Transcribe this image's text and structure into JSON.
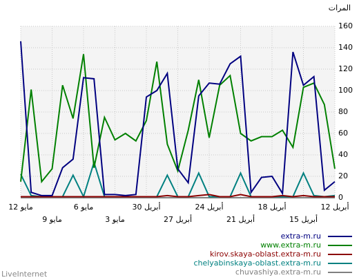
{
  "chart_data": {
    "type": "line",
    "y_label": "المرات",
    "categories": [
      "12 مايو",
      null,
      null,
      "9 مايو",
      null,
      null,
      "6 مايو",
      null,
      null,
      "3 مايو",
      null,
      null,
      "30 أبريل",
      null,
      null,
      "27 أبريل",
      null,
      null,
      "24 أبريل",
      null,
      null,
      "21 أبريل",
      null,
      null,
      "18 أبريل",
      null,
      null,
      "15 أبريل",
      null,
      null,
      "12 أبريل"
    ],
    "series": [
      {
        "name": "extra-m.ru",
        "color": "#000080",
        "values": [
          146,
          5,
          2,
          2,
          28,
          36,
          112,
          111,
          3,
          3,
          2,
          3,
          94,
          100,
          116,
          27,
          14,
          95,
          107,
          106,
          125,
          132,
          5,
          19,
          20,
          4,
          136,
          105,
          113,
          7,
          15
        ]
      },
      {
        "name": "www.extra-m.ru",
        "color": "#008000",
        "values": [
          15,
          101,
          15,
          27,
          105,
          74,
          134,
          28,
          75,
          54,
          60,
          53,
          72,
          127,
          50,
          25,
          63,
          110,
          56,
          105,
          114,
          60,
          53,
          57,
          57,
          63,
          47,
          103,
          107,
          87,
          27
        ]
      },
      {
        "name": "kirov.skaya-oblast.extra-m.ru",
        "color": "#8b0000",
        "values": [
          1,
          1,
          1,
          1,
          1,
          1,
          1,
          1,
          1,
          1,
          1,
          1,
          1,
          1,
          2,
          1,
          1,
          2,
          3,
          1,
          1,
          3,
          1,
          1,
          1,
          2,
          1,
          2,
          1,
          1,
          1
        ]
      },
      {
        "name": "chelyabinskaya-oblast.extra-m.ru",
        "color": "#008080",
        "values": [
          22,
          2,
          1,
          1,
          1,
          21,
          1,
          33,
          1,
          1,
          1,
          1,
          1,
          1,
          21,
          1,
          1,
          23,
          1,
          1,
          1,
          23,
          1,
          1,
          1,
          1,
          1,
          23,
          2,
          1,
          2
        ]
      },
      {
        "name": "chuvashiya.extra-m.ru",
        "color": "#808080",
        "values": [
          0,
          0,
          0,
          0,
          0,
          0,
          0,
          0,
          0,
          0,
          0,
          0,
          0,
          0,
          0,
          0,
          0,
          0,
          0,
          0,
          0,
          0,
          0,
          0,
          0,
          0,
          0,
          0,
          0,
          0,
          0
        ]
      }
    ],
    "ylim": [
      0,
      160
    ],
    "yticks": [
      0,
      20,
      40,
      60,
      80,
      100,
      120,
      140,
      160
    ],
    "grid": true,
    "footer": "LiveInternet"
  }
}
